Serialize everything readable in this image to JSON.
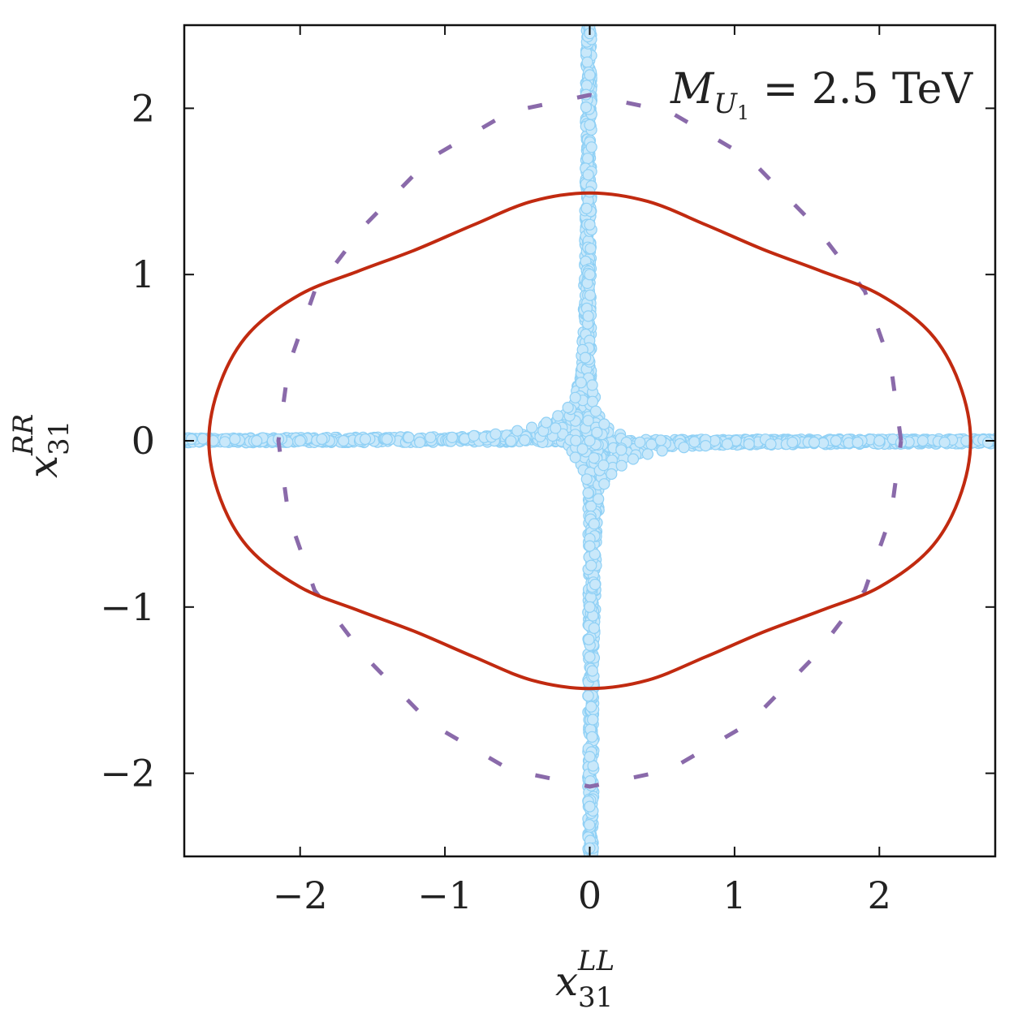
{
  "chart_data": {
    "type": "scatter",
    "title": "",
    "annotation": {
      "symbol": "M",
      "sub": "U",
      "subsub": "1",
      "rest": " = 2.5 TeV"
    },
    "xlabel": {
      "base": "x",
      "sub": "31",
      "sup": "LL"
    },
    "ylabel": {
      "base": "x",
      "sub": "31",
      "sup": "RR"
    },
    "xlim": [
      -2.8,
      2.8
    ],
    "ylim": [
      -2.5,
      2.5
    ],
    "xticks": [
      -2,
      -1,
      0,
      1,
      2
    ],
    "yticks": [
      -2,
      -1,
      0,
      1,
      2
    ],
    "xtick_labels": [
      "−2",
      "−1",
      "0",
      "1",
      "2"
    ],
    "ytick_labels": [
      "−2",
      "−1",
      "0",
      "1",
      "2"
    ],
    "grid": false,
    "colors": {
      "scatter_fill": "#c9e8fa",
      "scatter_edge": "#8fd0f5",
      "solid_contour": "#c12a10",
      "dashed_contour": "#8a6aaa",
      "axes": "#111111"
    },
    "series": [
      {
        "kind": "scatter_cross",
        "horizontal_arm_x": [
          -2.8,
          2.8
        ],
        "vertical_arm_y": [
          -2.5,
          2.5
        ],
        "points": [
          [
            -2.75,
            0.01
          ],
          [
            -2.6,
            0.0
          ],
          [
            -2.45,
            0.01
          ],
          [
            -2.3,
            0.0
          ],
          [
            -2.15,
            0.01
          ],
          [
            -2.0,
            0.0
          ],
          [
            -1.85,
            0.01
          ],
          [
            -1.7,
            0.0
          ],
          [
            -1.55,
            0.01
          ],
          [
            -1.4,
            0.01
          ],
          [
            -1.25,
            0.02
          ],
          [
            -1.1,
            0.02
          ],
          [
            -0.95,
            0.02
          ],
          [
            -0.8,
            0.03
          ],
          [
            -0.65,
            0.04
          ],
          [
            -0.5,
            0.06
          ],
          [
            -0.4,
            0.08
          ],
          [
            -0.3,
            0.11
          ],
          [
            -0.22,
            0.15
          ],
          [
            -0.15,
            0.2
          ],
          [
            -0.1,
            0.26
          ],
          [
            -0.06,
            0.35
          ],
          [
            -0.03,
            0.5
          ],
          [
            -0.01,
            0.75
          ],
          [
            0.0,
            1.0
          ],
          [
            0.0,
            1.3
          ],
          [
            -0.01,
            1.6
          ],
          [
            0.0,
            1.9
          ],
          [
            0.0,
            2.2
          ],
          [
            0.0,
            2.45
          ],
          [
            2.75,
            -0.01
          ],
          [
            2.6,
            0.0
          ],
          [
            2.45,
            -0.01
          ],
          [
            2.3,
            0.0
          ],
          [
            2.15,
            -0.01
          ],
          [
            2.0,
            0.0
          ],
          [
            1.85,
            -0.01
          ],
          [
            1.7,
            0.0
          ],
          [
            1.55,
            -0.01
          ],
          [
            1.4,
            -0.01
          ],
          [
            1.25,
            -0.02
          ],
          [
            1.1,
            -0.02
          ],
          [
            0.95,
            -0.02
          ],
          [
            0.8,
            -0.03
          ],
          [
            0.65,
            -0.04
          ],
          [
            0.5,
            -0.06
          ],
          [
            0.4,
            -0.08
          ],
          [
            0.3,
            -0.11
          ],
          [
            0.22,
            -0.15
          ],
          [
            0.15,
            -0.2
          ],
          [
            0.1,
            -0.26
          ],
          [
            0.06,
            -0.35
          ],
          [
            0.03,
            -0.5
          ],
          [
            0.01,
            -0.75
          ],
          [
            0.0,
            -1.0
          ],
          [
            0.0,
            -1.3
          ],
          [
            0.01,
            -1.6
          ],
          [
            0.0,
            -1.9
          ],
          [
            0.0,
            -2.2
          ],
          [
            0.0,
            -2.45
          ],
          [
            0.0,
            0.0
          ],
          [
            0.05,
            0.05
          ],
          [
            -0.05,
            -0.05
          ],
          [
            0.1,
            0.1
          ],
          [
            -0.1,
            -0.1
          ]
        ]
      },
      {
        "kind": "solid_contour",
        "points": [
          [
            2.63,
            0.0
          ],
          [
            2.55,
            0.35
          ],
          [
            2.35,
            0.65
          ],
          [
            2.0,
            0.88
          ],
          [
            1.6,
            1.02
          ],
          [
            1.2,
            1.15
          ],
          [
            0.8,
            1.3
          ],
          [
            0.4,
            1.44
          ],
          [
            0.0,
            1.49
          ],
          [
            -0.4,
            1.44
          ],
          [
            -0.8,
            1.3
          ],
          [
            -1.2,
            1.15
          ],
          [
            -1.6,
            1.02
          ],
          [
            -2.0,
            0.88
          ],
          [
            -2.35,
            0.65
          ],
          [
            -2.55,
            0.35
          ],
          [
            -2.63,
            0.0
          ],
          [
            -2.55,
            -0.35
          ],
          [
            -2.35,
            -0.65
          ],
          [
            -2.0,
            -0.88
          ],
          [
            -1.6,
            -1.02
          ],
          [
            -1.2,
            -1.15
          ],
          [
            -0.8,
            -1.3
          ],
          [
            -0.4,
            -1.44
          ],
          [
            0.0,
            -1.49
          ],
          [
            0.4,
            -1.44
          ],
          [
            0.8,
            -1.3
          ],
          [
            1.2,
            -1.15
          ],
          [
            1.6,
            -1.02
          ],
          [
            2.0,
            -0.88
          ],
          [
            2.35,
            -0.65
          ],
          [
            2.55,
            -0.35
          ],
          [
            2.63,
            0.0
          ]
        ]
      },
      {
        "kind": "dashed_contour",
        "points": [
          [
            2.15,
            0.0
          ],
          [
            2.08,
            0.45
          ],
          [
            1.9,
            0.9
          ],
          [
            1.55,
            1.3
          ],
          [
            1.1,
            1.7
          ],
          [
            0.55,
            1.98
          ],
          [
            0.0,
            2.08
          ],
          [
            -0.55,
            1.98
          ],
          [
            -1.1,
            1.7
          ],
          [
            -1.55,
            1.3
          ],
          [
            -1.9,
            0.9
          ],
          [
            -2.08,
            0.45
          ],
          [
            -2.15,
            0.0
          ],
          [
            -2.08,
            -0.45
          ],
          [
            -1.9,
            -0.9
          ],
          [
            -1.55,
            -1.3
          ],
          [
            -1.1,
            -1.7
          ],
          [
            -0.55,
            -1.98
          ],
          [
            0.0,
            -2.08
          ],
          [
            0.55,
            -1.98
          ],
          [
            1.1,
            -1.7
          ],
          [
            1.55,
            -1.3
          ],
          [
            1.9,
            -0.9
          ],
          [
            2.08,
            -0.45
          ],
          [
            2.15,
            0.0
          ]
        ]
      }
    ]
  }
}
